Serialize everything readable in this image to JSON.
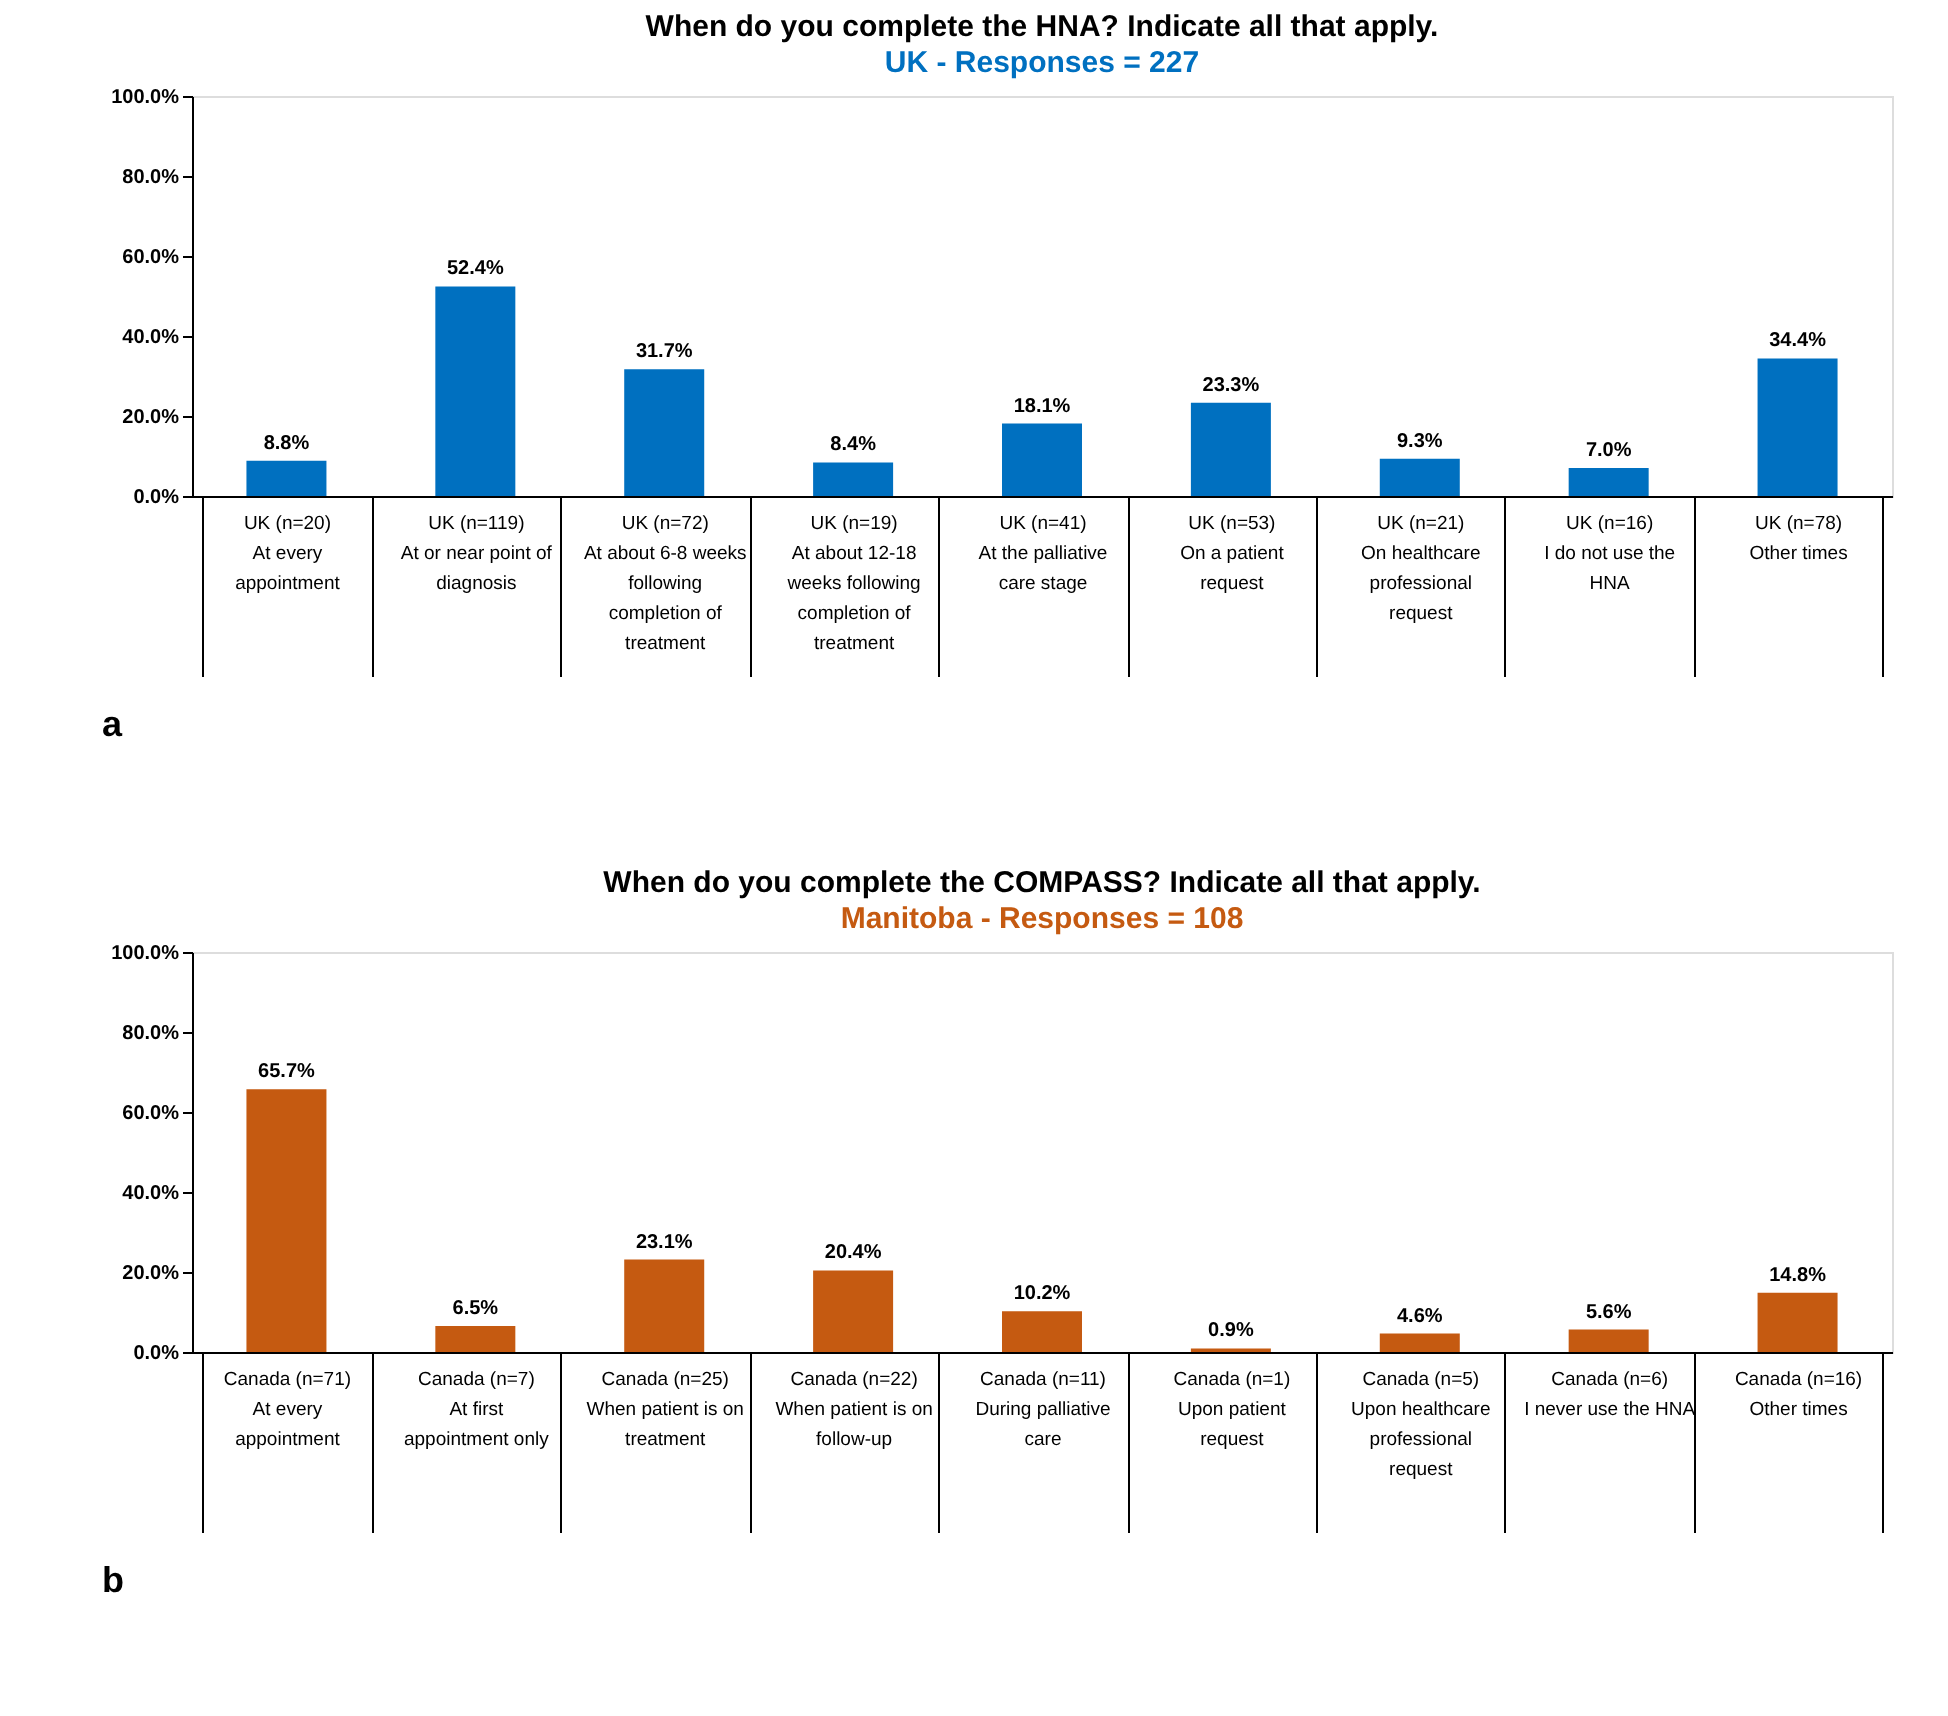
{
  "chart_data": [
    {
      "type": "bar",
      "title": "When do you complete the HNA? Indicate all that apply.",
      "subtitle": "UK - Responses = 227",
      "categories": [
        "UK (n=20)\nAt every\nappointment",
        "UK (n=119)\nAt or near point of\ndiagnosis",
        "UK (n=72)\nAt about 6-8 weeks\nfollowing\ncompletion of\ntreatment",
        "UK (n=19)\nAt about 12-18\nweeks following\ncompletion of\ntreatment",
        "UK (n=41)\nAt the palliative\ncare stage",
        "UK (n=53)\nOn a patient\nrequest",
        "UK (n=21)\nOn healthcare\nprofessional\nrequest",
        "UK (n=16)\nI do not use the\nHNA",
        "UK (n=78)\nOther times"
      ],
      "series": [
        {
          "color": "#0070c0",
          "values": [
            8.8,
            52.4,
            31.7,
            8.4,
            18.1,
            23.3,
            9.3,
            7.0,
            34.4
          ],
          "value_labels": [
            "8.8%",
            "52.4%",
            "31.7%",
            "8.4%",
            "18.1%",
            "23.3%",
            "9.3%",
            "7.0%",
            "34.4%"
          ]
        }
      ],
      "ylim": [
        0,
        100
      ],
      "yticks": [
        {
          "value": 0,
          "label": "0.0%"
        },
        {
          "value": 20,
          "label": "20.0%"
        },
        {
          "value": 40,
          "label": "40.0%"
        },
        {
          "value": 60,
          "label": "60.0%"
        },
        {
          "value": 80,
          "label": "80.0%"
        },
        {
          "value": 100,
          "label": "100.0%"
        }
      ],
      "annotations": [
        "a"
      ]
    },
    {
      "type": "bar",
      "title": "When do you complete the COMPASS? Indicate all that apply.",
      "subtitle": "Manitoba - Responses = 108",
      "categories": [
        "Canada (n=71)\nAt every\nappointment",
        "Canada (n=7)\nAt first\nappointment only",
        "Canada (n=25)\nWhen patient is on\ntreatment",
        "Canada (n=22)\nWhen patient is on\nfollow-up",
        "Canada (n=11)\nDuring palliative\ncare",
        "Canada (n=1)\nUpon patient\nrequest",
        "Canada (n=5)\nUpon healthcare\nprofessional\nrequest",
        "Canada (n=6)\nI never use the HNA",
        "Canada (n=16)\nOther times"
      ],
      "series": [
        {
          "color": "#c55a11",
          "values": [
            65.7,
            6.5,
            23.1,
            20.4,
            10.2,
            0.9,
            4.6,
            5.6,
            14.8
          ],
          "value_labels": [
            "65.7%",
            "6.5%",
            "23.1%",
            "20.4%",
            "10.2%",
            "0.9%",
            "4.6%",
            "5.6%",
            "14.8%"
          ]
        }
      ],
      "ylim": [
        0,
        100
      ],
      "yticks": [
        {
          "value": 0,
          "label": "0.0%"
        },
        {
          "value": 20,
          "label": "20.0%"
        },
        {
          "value": 40,
          "label": "40.0%"
        },
        {
          "value": 60,
          "label": "60.0%"
        },
        {
          "value": 80,
          "label": "80.0%"
        },
        {
          "value": 100,
          "label": "100.0%"
        }
      ],
      "annotations": [
        "b"
      ]
    }
  ]
}
